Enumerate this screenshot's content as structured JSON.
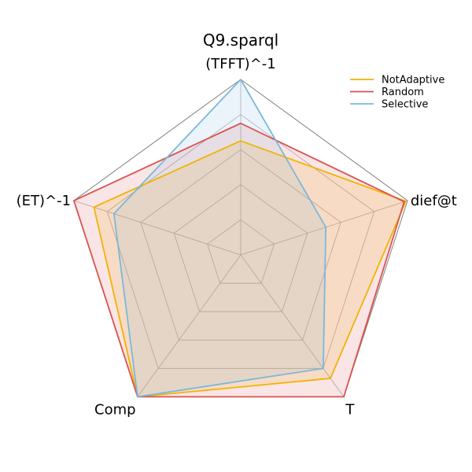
{
  "chart_data": {
    "type": "radar",
    "title": "Q9.sparql",
    "axes": [
      "(TFFT)^-1",
      "dief@t",
      "T",
      "Comp",
      "(ET)^-1"
    ],
    "rlim": [
      0,
      1
    ],
    "grid": true,
    "legend_position": "top-right",
    "series": [
      {
        "name": "NotAdaptive",
        "color": "#f0b400",
        "values": [
          0.65,
          0.99,
          0.87,
          1.0,
          0.88
        ]
      },
      {
        "name": "Random",
        "color": "#d9534f",
        "values": [
          0.75,
          0.98,
          1.0,
          1.0,
          1.0
        ]
      },
      {
        "name": "Selective",
        "color": "#7ab8dc",
        "values": [
          1.0,
          0.51,
          0.8,
          1.0,
          0.76
        ]
      }
    ]
  }
}
